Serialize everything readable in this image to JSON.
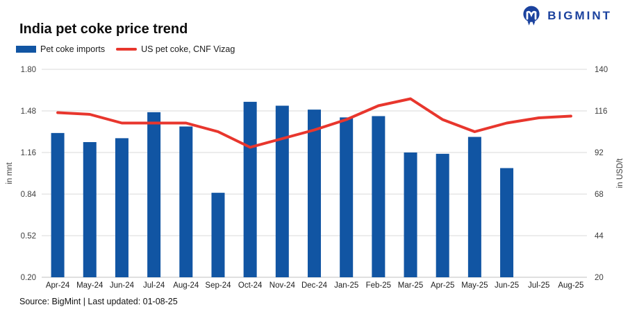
{
  "logo": {
    "text": "BIGMINT",
    "icon": "bigmint-m-monogram"
  },
  "header": {
    "title": "India pet coke price trend"
  },
  "footer": {
    "source": "Source: BigMint | Last updated: 01-08-25"
  },
  "colors": {
    "bar": "#1155a3",
    "line": "#e8362d",
    "logo": "#1b429e",
    "grid": "#d9d9d9",
    "axisline": "#bfbfbf"
  },
  "chart_data": {
    "type": "combo-bar-line",
    "title": "India pet coke price trend",
    "grid": true,
    "legend_position": "top-left",
    "categories": [
      "Apr-24",
      "May-24",
      "Jun-24",
      "Jul-24",
      "Aug-24",
      "Sep-24",
      "Oct-24",
      "Nov-24",
      "Dec-24",
      "Jan-25",
      "Feb-25",
      "Mar-25",
      "Apr-25",
      "May-25",
      "Jun-25",
      "Jul-25",
      "Aug-25"
    ],
    "left_axis": {
      "label": "in mnt",
      "min": 0.2,
      "max": 1.8,
      "ticks": [
        "1.80",
        "1.48",
        "1.16",
        "0.84",
        "0.52",
        "0.20"
      ]
    },
    "right_axis": {
      "label": "in USD/t",
      "min": 20,
      "max": 140,
      "ticks": [
        "140",
        "116",
        "92",
        "68",
        "44",
        "20"
      ]
    },
    "series": [
      {
        "name": "Pet coke imports",
        "type": "bar",
        "axis": "left",
        "unit": "mnt",
        "values": [
          1.31,
          1.24,
          1.27,
          1.47,
          1.36,
          0.85,
          1.55,
          1.52,
          1.49,
          1.43,
          1.44,
          1.16,
          1.15,
          1.28,
          1.04,
          null,
          null
        ]
      },
      {
        "name": "US pet coke, CNF Vizag",
        "type": "line",
        "axis": "right",
        "unit": "USD/t",
        "values": [
          115,
          114,
          109,
          109,
          109,
          104,
          95,
          100,
          105,
          111,
          119,
          123,
          111,
          104,
          109,
          112,
          113
        ]
      }
    ]
  }
}
